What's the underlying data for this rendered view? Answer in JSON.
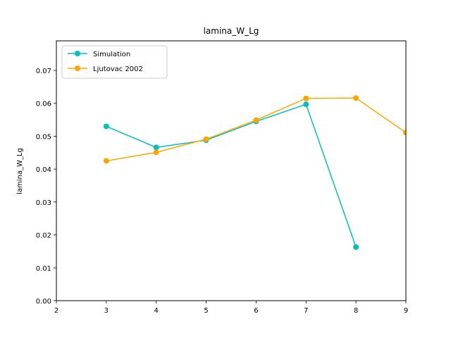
{
  "chart_data": {
    "type": "line",
    "title": "lamina_W_Lg",
    "xlabel": "",
    "ylabel": "lamina_W_Lg",
    "xlim": [
      2,
      9
    ],
    "ylim": [
      0.0,
      0.079
    ],
    "xticks": [
      "2",
      "3",
      "4",
      "5",
      "6",
      "7",
      "8",
      "9"
    ],
    "yticks": [
      "0.00",
      "0.01",
      "0.02",
      "0.03",
      "0.04",
      "0.05",
      "0.06",
      "0.07"
    ],
    "grid": false,
    "legend_position": "upper-left",
    "series": [
      {
        "name": "Simulation",
        "color": "#00bfbf",
        "marker": "circle",
        "x": [
          3,
          4,
          5,
          6,
          7,
          8
        ],
        "y": [
          0.053,
          0.0466,
          0.0488,
          0.0545,
          0.0597,
          0.0163
        ]
      },
      {
        "name": "Ljutovac 2002",
        "color": "#ffa500",
        "marker": "circle",
        "x": [
          3,
          4,
          5,
          6,
          7,
          8,
          9
        ],
        "y": [
          0.0425,
          0.0451,
          0.0491,
          0.0549,
          0.0615,
          0.0616,
          0.0511
        ]
      }
    ]
  }
}
